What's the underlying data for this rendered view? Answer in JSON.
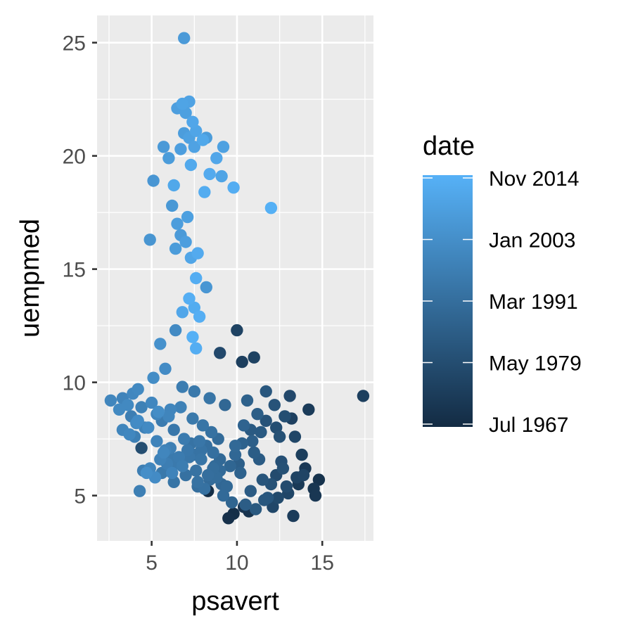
{
  "chart_data": {
    "type": "scatter",
    "xlabel": "psavert",
    "ylabel": "uempmed",
    "xlim": [
      1.8,
      18
    ],
    "ylim": [
      3,
      26.2
    ],
    "x_ticks": [
      5,
      10,
      15
    ],
    "y_ticks": [
      5,
      10,
      15,
      20,
      25
    ],
    "grid": true,
    "legend": {
      "title": "date",
      "placement": "right",
      "type": "colorbar",
      "range": [
        "1967-07-01",
        "2015-04-01"
      ],
      "color_low": "#132b43",
      "color_high": "#56b1f7",
      "tick_labels": [
        "Nov 2014",
        "Jan 2003",
        "Mar 1991",
        "May 1979",
        "Jul 1967"
      ]
    },
    "x": [
      6.9,
      7.2,
      6.5,
      6.8,
      7.0,
      7.4,
      6.9,
      7.2,
      7.6,
      8.0,
      8.2,
      6.7,
      7.5,
      8.8,
      9.2,
      8.4,
      5.7,
      6.0,
      7.3,
      8.1,
      9.1,
      5.1,
      6.3,
      9.8,
      12.0,
      6.2,
      7.1,
      6.5,
      6.7,
      4.9,
      6.4,
      7.0,
      7.3,
      7.7,
      7.6,
      7.2,
      8.2,
      7.5,
      6.8,
      7.8,
      10.0,
      6.4,
      9.0,
      5.5,
      7.4,
      7.6,
      10.3,
      11.0,
      5.8,
      4.2,
      3.3,
      2.6,
      3.9,
      5.1,
      6.8,
      7.5,
      8.4,
      6.1,
      4.4,
      3.8,
      4.6,
      5.6,
      6.3,
      4.0,
      5.3,
      3.1,
      4.4,
      6.0,
      7.3,
      8.9,
      10.4,
      11.2,
      12.2,
      13.1,
      12.8,
      14.2,
      11.7,
      10.6,
      9.3,
      11.4,
      13.2,
      12.5,
      10.9,
      9.9,
      8.6,
      7.9,
      9.6,
      11.0,
      12.6,
      13.8,
      14.0,
      12.3,
      11.5,
      10.2,
      8.8,
      7.7,
      9.4,
      10.8,
      12.0,
      13.5,
      14.5,
      13.0,
      11.8,
      10.5,
      9.2,
      8.1,
      9.7,
      11.1,
      12.4,
      13.6,
      14.8,
      13.3,
      12.1,
      10.7,
      9.5,
      8.3,
      9.0,
      10.1,
      11.3,
      12.7,
      13.9,
      12.9,
      11.6,
      10.4,
      9.8,
      9.9,
      10.3,
      10.8,
      11.7,
      12.3,
      13.4,
      14.6,
      17.4,
      5.5,
      4.3,
      4.9,
      5.9,
      6.6,
      7.1,
      6.2,
      5.2,
      4.7,
      3.6,
      4.1,
      5.0,
      5.4,
      6.0,
      6.7,
      7.4,
      8.0,
      8.5,
      7.8,
      6.9,
      6.1,
      5.7,
      6.5,
      7.2,
      6.8,
      7.6,
      8.3,
      9.0,
      8.6,
      7.5,
      6.4,
      5.8,
      5.3,
      4.8,
      4.2,
      3.7,
      3.3,
      4.5,
      5.6,
      6.3,
      7.0,
      7.7,
      8.4,
      9.1,
      8.7,
      8.2,
      7.9
    ],
    "y": [
      25.2,
      22.4,
      22.1,
      22.3,
      21.9,
      21.5,
      21.0,
      20.8,
      21.1,
      20.7,
      20.8,
      20.3,
      20.4,
      19.9,
      20.4,
      19.2,
      20.4,
      19.9,
      19.6,
      18.4,
      19.1,
      18.9,
      18.7,
      18.6,
      17.7,
      17.8,
      17.3,
      17.0,
      16.5,
      16.3,
      15.9,
      16.2,
      15.5,
      15.7,
      14.6,
      13.7,
      14.2,
      13.3,
      13.1,
      12.9,
      12.3,
      12.3,
      11.3,
      11.7,
      12.0,
      11.5,
      10.9,
      11.1,
      10.6,
      9.7,
      9.3,
      9.2,
      9.5,
      10.2,
      9.8,
      9.6,
      9.3,
      8.8,
      8.9,
      8.5,
      8.0,
      8.3,
      7.9,
      7.6,
      7.4,
      8.8,
      7.1,
      6.8,
      7.3,
      7.5,
      8.1,
      8.6,
      9.0,
      9.4,
      8.5,
      8.8,
      9.6,
      9.2,
      9.0,
      7.8,
      8.4,
      7.6,
      7.4,
      7.2,
      6.9,
      6.6,
      6.3,
      6.9,
      6.5,
      6.8,
      6.2,
      5.9,
      5.7,
      6.0,
      5.8,
      5.6,
      5.4,
      5.2,
      5.5,
      5.8,
      5.3,
      5.1,
      4.9,
      4.6,
      5.0,
      5.3,
      4.7,
      4.4,
      4.9,
      5.5,
      5.7,
      4.1,
      4.5,
      4.3,
      4.0,
      5.2,
      6.1,
      6.4,
      6.6,
      6.2,
      5.9,
      5.4,
      4.8,
      4.5,
      4.2,
      6.8,
      7.3,
      7.9,
      8.3,
      8.0,
      7.6,
      5.0,
      9.4,
      6.6,
      5.2,
      6.2,
      6.4,
      6.7,
      7.0,
      6.0,
      5.8,
      6.0,
      9.0,
      8.2,
      9.1,
      8.7,
      8.5,
      8.9,
      8.4,
      8.1,
      7.8,
      7.4,
      7.5,
      7.1,
      6.9,
      6.5,
      6.7,
      6.3,
      6.1,
      5.9,
      6.6,
      6.2,
      6.8,
      6.4,
      7.0,
      8.6,
      8.0,
      8.3,
      7.7,
      7.9,
      6.1,
      6.0,
      5.6,
      5.9,
      5.4,
      5.7,
      5.5,
      6.3,
      7.2,
      7.0
    ],
    "t": [
      0.83,
      0.89,
      0.86,
      0.9,
      0.87,
      0.92,
      0.85,
      0.88,
      0.91,
      0.93,
      0.84,
      0.86,
      0.89,
      0.92,
      0.88,
      0.95,
      0.82,
      0.84,
      0.94,
      0.96,
      0.9,
      0.8,
      0.93,
      0.97,
      0.99,
      0.81,
      0.87,
      0.85,
      0.83,
      0.79,
      0.84,
      0.86,
      0.91,
      0.95,
      0.97,
      0.98,
      0.8,
      0.96,
      0.92,
      0.98,
      0.18,
      0.71,
      0.22,
      0.76,
      0.99,
      0.97,
      0.15,
      0.17,
      0.72,
      0.7,
      0.66,
      0.68,
      0.69,
      0.73,
      0.61,
      0.58,
      0.55,
      0.67,
      0.64,
      0.62,
      0.65,
      0.6,
      0.57,
      0.63,
      0.66,
      0.7,
      0.25,
      0.59,
      0.54,
      0.48,
      0.42,
      0.38,
      0.3,
      0.22,
      0.26,
      0.12,
      0.33,
      0.4,
      0.45,
      0.35,
      0.16,
      0.28,
      0.39,
      0.46,
      0.51,
      0.55,
      0.44,
      0.37,
      0.27,
      0.14,
      0.1,
      0.24,
      0.31,
      0.41,
      0.49,
      0.53,
      0.46,
      0.36,
      0.29,
      0.18,
      0.08,
      0.2,
      0.32,
      0.37,
      0.47,
      0.52,
      0.43,
      0.34,
      0.23,
      0.11,
      0.05,
      0.13,
      0.21,
      0.06,
      0.04,
      0.02,
      0.47,
      0.39,
      0.36,
      0.28,
      0.19,
      0.24,
      0.33,
      0.07,
      0.03,
      0.45,
      0.41,
      0.35,
      0.3,
      0.26,
      0.2,
      0.09,
      0.15,
      0.65,
      0.63,
      0.68,
      0.62,
      0.6,
      0.57,
      0.66,
      0.72,
      0.74,
      0.7,
      0.71,
      0.69,
      0.73,
      0.67,
      0.64,
      0.58,
      0.55,
      0.52,
      0.56,
      0.6,
      0.63,
      0.68,
      0.59,
      0.56,
      0.61,
      0.53,
      0.5,
      0.46,
      0.49,
      0.54,
      0.58,
      0.65,
      0.67,
      0.71,
      0.72,
      0.69,
      0.67,
      0.62,
      0.58,
      0.55,
      0.52,
      0.5,
      0.48,
      0.45,
      0.47,
      0.51,
      0.54
    ]
  }
}
